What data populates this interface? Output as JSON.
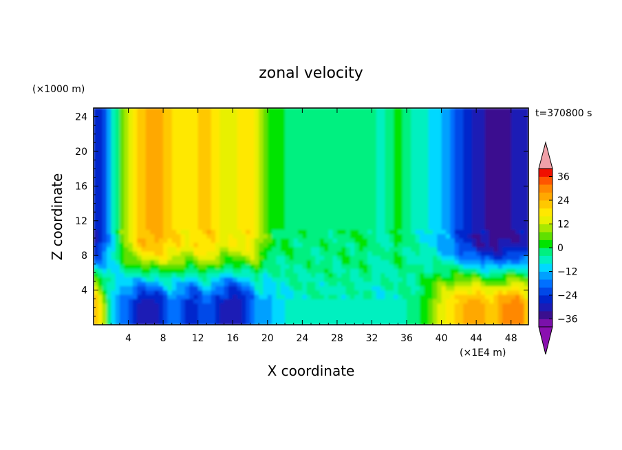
{
  "chart_data": {
    "type": "heatmap",
    "title": "zonal velocity",
    "xlabel": "X coordinate",
    "ylabel": "Z coordinate",
    "x_unit": "(×1E4 m)",
    "y_unit": "(×1000 m)",
    "time_label": "t=370800 s",
    "xlim": [
      0,
      50
    ],
    "ylim": [
      0,
      25
    ],
    "x_ticks": [
      4,
      8,
      12,
      16,
      20,
      24,
      28,
      32,
      36,
      40,
      44,
      48
    ],
    "x_tick_labels": [
      "4",
      "8",
      "12",
      "16",
      "20",
      "24",
      "28",
      "32",
      "36",
      "40",
      "44",
      "48"
    ],
    "y_ticks": [
      4,
      8,
      12,
      16,
      20,
      24
    ],
    "y_tick_labels": [
      "4",
      "8",
      "12",
      "16",
      "20",
      "24"
    ],
    "colorbar": {
      "levels": [
        -40,
        -36,
        -32,
        -28,
        -24,
        -20,
        -16,
        -12,
        -8,
        -4,
        0,
        4,
        8,
        12,
        16,
        20,
        24,
        28,
        32,
        36,
        40
      ],
      "tick_values": [
        -36,
        -24,
        -12,
        0,
        12,
        24,
        36
      ],
      "tick_labels": [
        "−36",
        "−24",
        "−12",
        "0",
        "12",
        "24",
        "36"
      ],
      "colors": [
        "#7a11aa",
        "#3a0f8f",
        "#1b1bb5",
        "#0025cc",
        "#0048e8",
        "#0070ff",
        "#00a0ff",
        "#00d8ff",
        "#00f0c0",
        "#00f080",
        "#00e400",
        "#60e000",
        "#a8e800",
        "#e8f000",
        "#ffe800",
        "#ffc800",
        "#ffa800",
        "#ff8800",
        "#ff5500",
        "#f01000"
      ],
      "under_color": "#8a10b0",
      "over_color": "#f0a0a8"
    },
    "field_columns": {
      "x": [
        0,
        1,
        2,
        3,
        4,
        5,
        6,
        7,
        8,
        9,
        10,
        11,
        12,
        13,
        14,
        15,
        16,
        17,
        18,
        19,
        20,
        21,
        22,
        23,
        24,
        25,
        26,
        27,
        28,
        29,
        30,
        31,
        32,
        33,
        34,
        35,
        36,
        37,
        38,
        39,
        40,
        41,
        42,
        43,
        44,
        45,
        46,
        47,
        48,
        49,
        50
      ],
      "upper_value": [
        -28,
        -26,
        -10,
        2,
        12,
        20,
        24,
        25,
        24,
        20,
        18,
        16,
        20,
        22,
        18,
        14,
        15,
        18,
        18,
        12,
        2,
        0,
        0,
        -1,
        -2,
        -2,
        -2,
        -1,
        -2,
        -1,
        -1,
        0,
        -2,
        -6,
        -3,
        1,
        -3,
        -6,
        -6,
        -10,
        -12,
        -17,
        -22,
        -27,
        -30,
        -32,
        -34,
        -34,
        -32,
        -30,
        -30
      ],
      "lower_value": [
        24,
        14,
        -8,
        -16,
        -20,
        -28,
        -30,
        -30,
        -24,
        -18,
        -20,
        -28,
        -24,
        -20,
        -24,
        -30,
        -32,
        -30,
        -22,
        -14,
        -14,
        -10,
        -8,
        -6,
        -6,
        -5,
        -5,
        -5,
        -5,
        -5,
        -6,
        -5,
        -6,
        -6,
        -6,
        -6,
        -4,
        -2,
        2,
        8,
        14,
        18,
        22,
        26,
        28,
        24,
        20,
        28,
        30,
        32,
        20
      ]
    }
  }
}
